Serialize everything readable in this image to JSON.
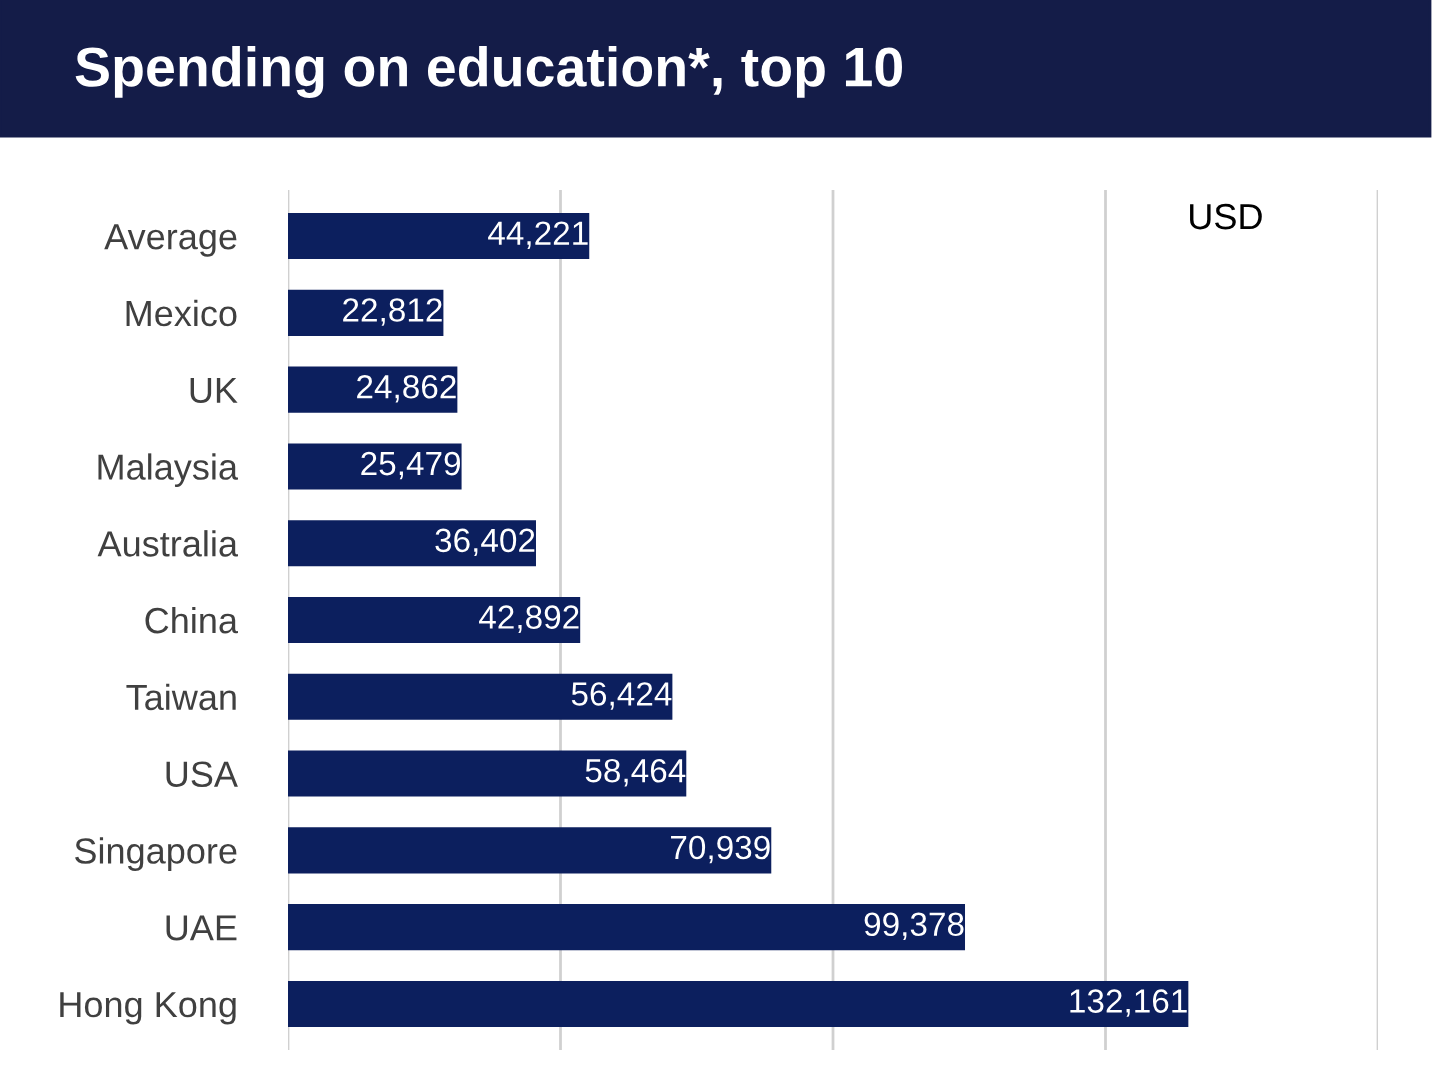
{
  "chart_data": {
    "type": "bar",
    "orientation": "horizontal",
    "title": "Spending on education*, top 10",
    "categories": [
      "Average",
      "Mexico",
      "UK",
      "Malaysia",
      "Australia",
      "China",
      "Taiwan",
      "USA",
      "Singapore",
      "UAE",
      "Hong Kong"
    ],
    "values": [
      44221,
      22812,
      24862,
      25479,
      36402,
      42892,
      56424,
      58464,
      70939,
      99378,
      132161
    ],
    "color": "#0c1f5e",
    "value_labels": [
      "44,221",
      "22,812",
      "24,862",
      "25,479",
      "36,402",
      "42,892",
      "56,424",
      "58,464",
      "70,939",
      "99,378",
      "132,161"
    ],
    "annotations": [
      "USD"
    ],
    "xlim": [
      0,
      160000
    ],
    "xticks": [
      {
        "value": 0,
        "label": null
      },
      {
        "value": 40000,
        "label": null
      },
      {
        "value": 80000,
        "label": null
      },
      {
        "value": 120000,
        "label": null
      },
      {
        "value": 160000,
        "label": null
      }
    ],
    "grid": "x",
    "tick_labels": "y"
  }
}
